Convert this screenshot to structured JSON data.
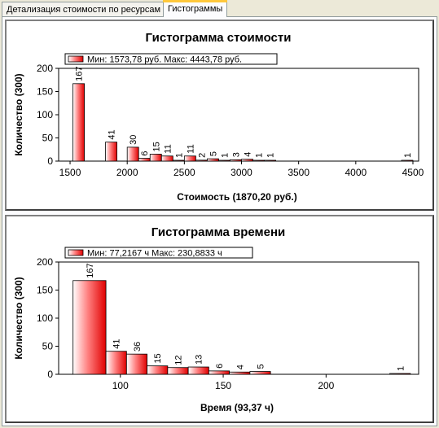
{
  "tabs": [
    {
      "label": "Детализация стоимости по ресурсам",
      "active": false
    },
    {
      "label": "Гистограммы",
      "active": true
    }
  ],
  "charts": [
    {
      "title": "Гистограмма стоимости",
      "legend": "Мин: 1573,78 руб. Макс: 4443,78 руб.",
      "chart_data": {
        "type": "bar",
        "title": "Гистограмма стоимости",
        "xlabel": "Стоимость (1870,20 руб.)",
        "ylabel": "Количество (300)",
        "xlim": [
          1400,
          4550
        ],
        "ylim": [
          0,
          200
        ],
        "xticks": [
          1500,
          2000,
          2500,
          3000,
          3500,
          4000,
          4500
        ],
        "yticks": [
          0,
          50,
          100,
          150,
          200
        ],
        "series": [
          {
            "name": "Мин: 1573,78 руб. Макс: 4443,78 руб.",
            "bins": [
              {
                "x0": 1525,
                "x1": 1625,
                "value": 167
              },
              {
                "x0": 1810,
                "x1": 1910,
                "value": 41
              },
              {
                "x0": 2000,
                "x1": 2100,
                "value": 30
              },
              {
                "x0": 2100,
                "x1": 2200,
                "value": 6
              },
              {
                "x0": 2200,
                "x1": 2300,
                "value": 15
              },
              {
                "x0": 2300,
                "x1": 2400,
                "value": 11
              },
              {
                "x0": 2400,
                "x1": 2500,
                "value": 1
              },
              {
                "x0": 2500,
                "x1": 2600,
                "value": 11
              },
              {
                "x0": 2600,
                "x1": 2700,
                "value": 2
              },
              {
                "x0": 2700,
                "x1": 2800,
                "value": 5
              },
              {
                "x0": 2800,
                "x1": 2900,
                "value": 1
              },
              {
                "x0": 2900,
                "x1": 3000,
                "value": 3
              },
              {
                "x0": 3000,
                "x1": 3100,
                "value": 4
              },
              {
                "x0": 3100,
                "x1": 3200,
                "value": 1
              },
              {
                "x0": 3200,
                "x1": 3300,
                "value": 1
              },
              {
                "x0": 4400,
                "x1": 4500,
                "value": 1
              }
            ]
          }
        ],
        "grid": false,
        "legend_position": "top-left"
      }
    },
    {
      "title": "Гистограмма времени",
      "legend": "Мин: 77,2167 ч Макс: 230,8833 ч",
      "chart_data": {
        "type": "bar",
        "title": "Гистограмма времени",
        "xlabel": "Время (93,37 ч)",
        "ylabel": "Количество (300)",
        "xlim": [
          70,
          245
        ],
        "ylim": [
          0,
          200
        ],
        "xticks": [
          100,
          150,
          200
        ],
        "yticks": [
          0,
          50,
          100,
          150,
          200
        ],
        "series": [
          {
            "name": "Мин: 77,2167 ч Макс: 230,8833 ч",
            "bins": [
              {
                "x0": 77,
                "x1": 93,
                "value": 167
              },
              {
                "x0": 93,
                "x1": 103,
                "value": 41
              },
              {
                "x0": 103,
                "x1": 113,
                "value": 36
              },
              {
                "x0": 113,
                "x1": 123,
                "value": 15
              },
              {
                "x0": 123,
                "x1": 133,
                "value": 12
              },
              {
                "x0": 133,
                "x1": 143,
                "value": 13
              },
              {
                "x0": 143,
                "x1": 153,
                "value": 6
              },
              {
                "x0": 153,
                "x1": 163,
                "value": 4
              },
              {
                "x0": 163,
                "x1": 173,
                "value": 5
              },
              {
                "x0": 231,
                "x1": 241,
                "value": 1
              }
            ]
          }
        ],
        "grid": false,
        "legend_position": "top-left"
      }
    }
  ]
}
